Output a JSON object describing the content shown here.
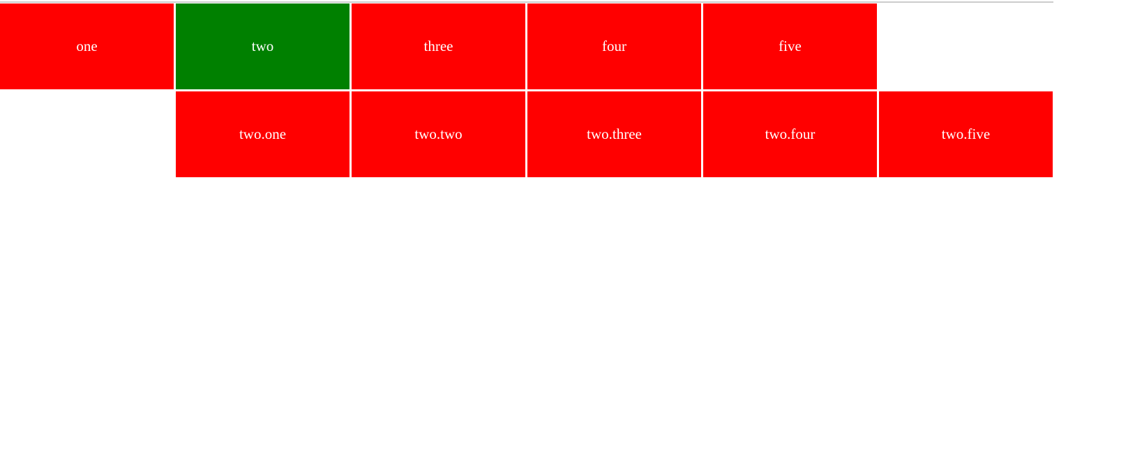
{
  "colors": {
    "item_background": "#ff0000",
    "highlighted_item_background": "#008000",
    "item_text": "#ffffff",
    "top_divider": "#cccccc",
    "page_background": "#ffffff"
  },
  "menu": {
    "items": [
      {
        "label": "one",
        "state": "normal"
      },
      {
        "label": "two",
        "state": "highlighted"
      },
      {
        "label": "three",
        "state": "normal"
      },
      {
        "label": "four",
        "state": "normal"
      },
      {
        "label": "five",
        "state": "normal"
      }
    ]
  },
  "submenu": {
    "items": [
      {
        "label": "two.one"
      },
      {
        "label": "two.two"
      },
      {
        "label": "two.three"
      },
      {
        "label": "two.four"
      },
      {
        "label": "two.five"
      }
    ]
  }
}
